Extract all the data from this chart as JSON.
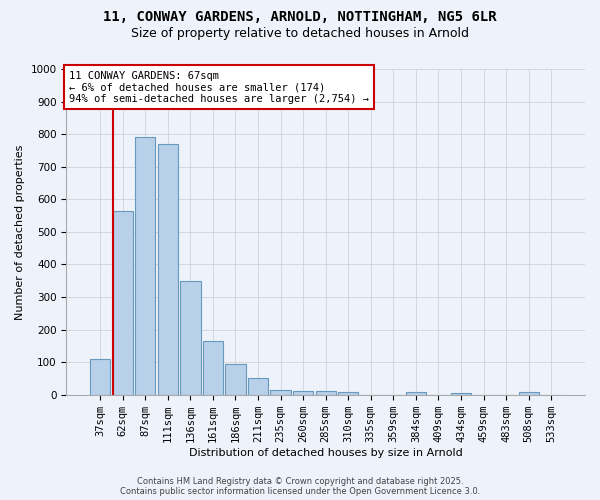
{
  "title1": "11, CONWAY GARDENS, ARNOLD, NOTTINGHAM, NG5 6LR",
  "title2": "Size of property relative to detached houses in Arnold",
  "xlabel": "Distribution of detached houses by size in Arnold",
  "ylabel": "Number of detached properties",
  "background_color": "#eef2fb",
  "bar_color": "#b8d0ea",
  "bar_edge_color": "#6699bb",
  "categories": [
    "37sqm",
    "62sqm",
    "87sqm",
    "111sqm",
    "136sqm",
    "161sqm",
    "186sqm",
    "211sqm",
    "235sqm",
    "260sqm",
    "285sqm",
    "310sqm",
    "335sqm",
    "359sqm",
    "384sqm",
    "409sqm",
    "434sqm",
    "459sqm",
    "483sqm",
    "508sqm",
    "533sqm"
  ],
  "values": [
    110,
    565,
    790,
    770,
    350,
    165,
    95,
    52,
    15,
    12,
    10,
    8,
    0,
    0,
    7,
    0,
    5,
    0,
    0,
    8,
    0
  ],
  "ylim": [
    0,
    1000
  ],
  "yticks": [
    0,
    100,
    200,
    300,
    400,
    500,
    600,
    700,
    800,
    900,
    1000
  ],
  "red_line_x": 0.55,
  "annotation_text": "11 CONWAY GARDENS: 67sqm\n← 6% of detached houses are smaller (174)\n94% of semi-detached houses are larger (2,754) →",
  "annotation_box_facecolor": "#ffffff",
  "annotation_border_color": "#cc0000",
  "red_line_color": "#cc0000",
  "footer1": "Contains HM Land Registry data © Crown copyright and database right 2025.",
  "footer2": "Contains public sector information licensed under the Open Government Licence 3.0.",
  "grid_color": "#cccccc",
  "title1_fontsize": 10,
  "title2_fontsize": 9,
  "ylabel_fontsize": 8,
  "xlabel_fontsize": 8,
  "tick_fontsize": 7.5,
  "footer_fontsize": 6
}
